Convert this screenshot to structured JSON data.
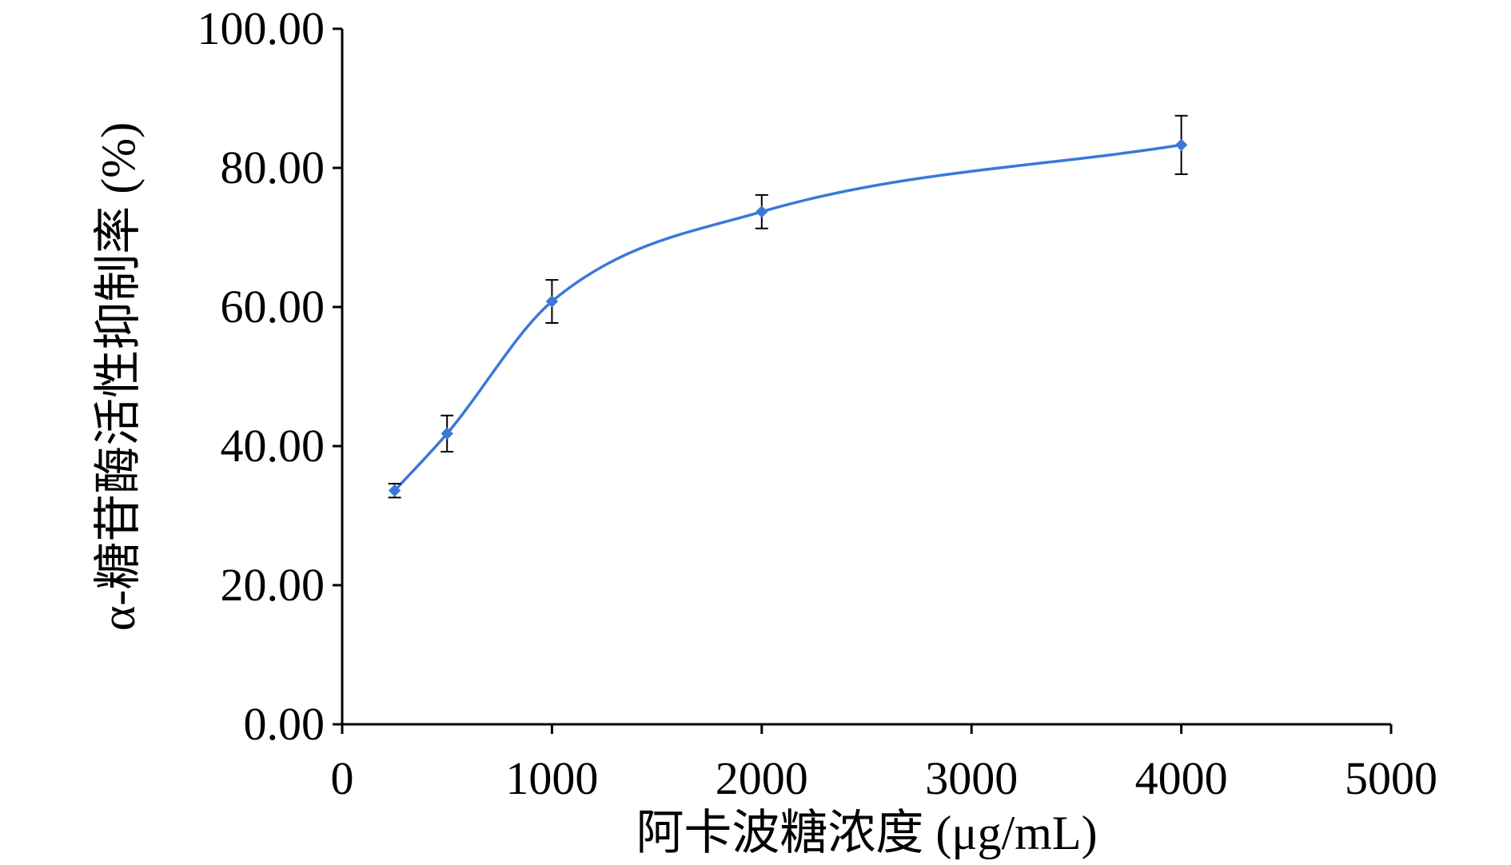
{
  "chart_data": {
    "type": "line",
    "title": "",
    "xlabel": "阿卡波糖浓度 (μg/mL)",
    "ylabel": "α-糖苷酶活性抑制率 (%)",
    "xlim": [
      0,
      5000
    ],
    "ylim": [
      0,
      100
    ],
    "xticks": [
      0,
      1000,
      2000,
      3000,
      4000,
      5000
    ],
    "xtick_labels": [
      "0",
      "1000",
      "2000",
      "3000",
      "4000",
      "5000"
    ],
    "yticks": [
      0,
      20,
      40,
      60,
      80,
      100
    ],
    "ytick_labels": [
      "0.00",
      "20.00",
      "40.00",
      "60.00",
      "80.00",
      "100.00"
    ],
    "grid": false,
    "legend": "none",
    "smooth": true,
    "color": "#3b78d8",
    "series": [
      {
        "x": [
          250,
          500,
          1000,
          2000,
          4000
        ],
        "y": [
          33.6,
          41.8,
          60.8,
          73.7,
          83.3
        ],
        "error": [
          1.0,
          2.6,
          3.1,
          2.4,
          4.2
        ]
      }
    ]
  }
}
